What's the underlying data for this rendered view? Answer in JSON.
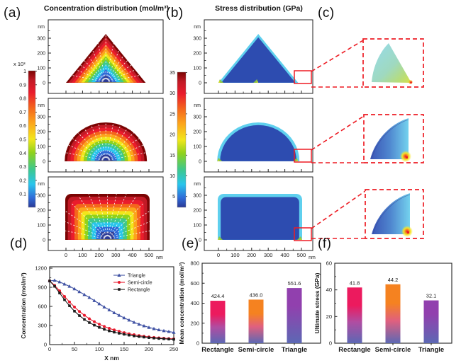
{
  "figure": {
    "panel_labels": {
      "a": "(a)",
      "b": "(b)",
      "c": "(c)",
      "d": "(d)",
      "e": "(e)",
      "f": "(f)"
    },
    "background": "#ffffff"
  },
  "axis": {
    "unit": "nm",
    "y_ticks": [
      "300",
      "200",
      "100",
      "0"
    ],
    "x_ticks": [
      "0",
      "100",
      "200",
      "300",
      "400",
      "500"
    ]
  },
  "panel_a": {
    "title": "Concentration distribution (mol/m³)",
    "colorbar": {
      "multiplier": "x 10³",
      "ticks": [
        "1",
        "0.9",
        "0.8",
        "0.7",
        "0.6",
        "0.5",
        "0.4",
        "0.3",
        "0.2",
        "0.1"
      ]
    },
    "shapes": [
      "triangle",
      "semi-circle",
      "rectangle"
    ]
  },
  "panel_b": {
    "title": "Stress distribution (GPa)",
    "colorbar": {
      "ticks": [
        "35",
        "30",
        "25",
        "20",
        "15",
        "10",
        "5"
      ]
    },
    "shapes": [
      "triangle",
      "semi-circle",
      "rectangle"
    ]
  },
  "panel_c": {
    "insets": [
      "triangle-corner",
      "semi-circle-corner",
      "rectangle-corner"
    ]
  },
  "chart_data": [
    {
      "id": "d",
      "type": "line",
      "xlabel": "X nm",
      "ylabel": "Concentration (mol/m³)",
      "xlim": [
        0,
        250
      ],
      "ylim": [
        0,
        1200
      ],
      "x_ticks": [
        0,
        50,
        100,
        150,
        200,
        250
      ],
      "y_ticks": [
        0,
        300,
        600,
        900,
        1200
      ],
      "legend_position": "top-right",
      "x": [
        0,
        10,
        20,
        30,
        40,
        50,
        60,
        70,
        80,
        90,
        100,
        110,
        120,
        130,
        140,
        150,
        160,
        170,
        180,
        190,
        200,
        210,
        220,
        230,
        240,
        250
      ],
      "series": [
        {
          "name": "Triangle",
          "color": "#3f51a3",
          "marker": "triangle",
          "values": [
            1000,
            1010,
            985,
            950,
            915,
            875,
            830,
            785,
            740,
            690,
            640,
            590,
            545,
            500,
            460,
            420,
            385,
            350,
            320,
            295,
            270,
            250,
            232,
            218,
            205,
            192
          ]
        },
        {
          "name": "Semi-circle",
          "color": "#e8192c",
          "marker": "circle",
          "values": [
            1000,
            930,
            845,
            755,
            670,
            590,
            520,
            460,
            405,
            360,
            320,
            285,
            255,
            230,
            208,
            188,
            170,
            155,
            142,
            131,
            121,
            113,
            106,
            100,
            95,
            90
          ]
        },
        {
          "name": "Rectangle",
          "color": "#1a1a1a",
          "marker": "square",
          "values": [
            1000,
            915,
            810,
            705,
            610,
            525,
            455,
            395,
            345,
            305,
            270,
            240,
            215,
            195,
            178,
            162,
            148,
            136,
            126,
            117,
            109,
            102,
            96,
            91,
            86,
            82
          ]
        }
      ]
    },
    {
      "id": "e",
      "type": "bar",
      "ylabel": "Mean concentration (mol/m³)",
      "categories": [
        "Rectangle",
        "Semi-circle",
        "Triangle"
      ],
      "values": [
        424.4,
        436.0,
        551.6
      ],
      "value_labels": [
        "424.4",
        "436.0",
        "551.6"
      ],
      "ylim": [
        0,
        800
      ],
      "y_ticks": [
        0,
        200,
        400,
        600,
        800
      ]
    },
    {
      "id": "f",
      "type": "bar",
      "ylabel": "Ultimate stress (GPa)",
      "categories": [
        "Rectangle",
        "Semi-circle",
        "Triangle"
      ],
      "values": [
        41.8,
        44.2,
        32.1
      ],
      "value_labels": [
        "41.8",
        "44.2",
        "32.1"
      ],
      "ylim": [
        0,
        60
      ],
      "y_ticks": [
        0,
        20,
        40,
        60
      ]
    }
  ],
  "colors": {
    "accent_red": "#ed1c24",
    "heat_scale": [
      "#7a0403",
      "#c21a26",
      "#ea1c2c",
      "#f4651d",
      "#fca41c",
      "#f2e61b",
      "#8fd21c",
      "#3ec88c",
      "#29c5ec",
      "#2f6bd8",
      "#2b3a96"
    ],
    "stress_body": "#2d4cb0",
    "stress_edge": "#5fd0ee",
    "bar_gradients": [
      [
        "#ec1a5e",
        "#b04da2",
        "#5c68b4"
      ],
      [
        "#f58220",
        "#e0607f",
        "#5c68b4"
      ],
      [
        "#9140ae",
        "#7b52b0",
        "#5c68b4"
      ]
    ]
  }
}
